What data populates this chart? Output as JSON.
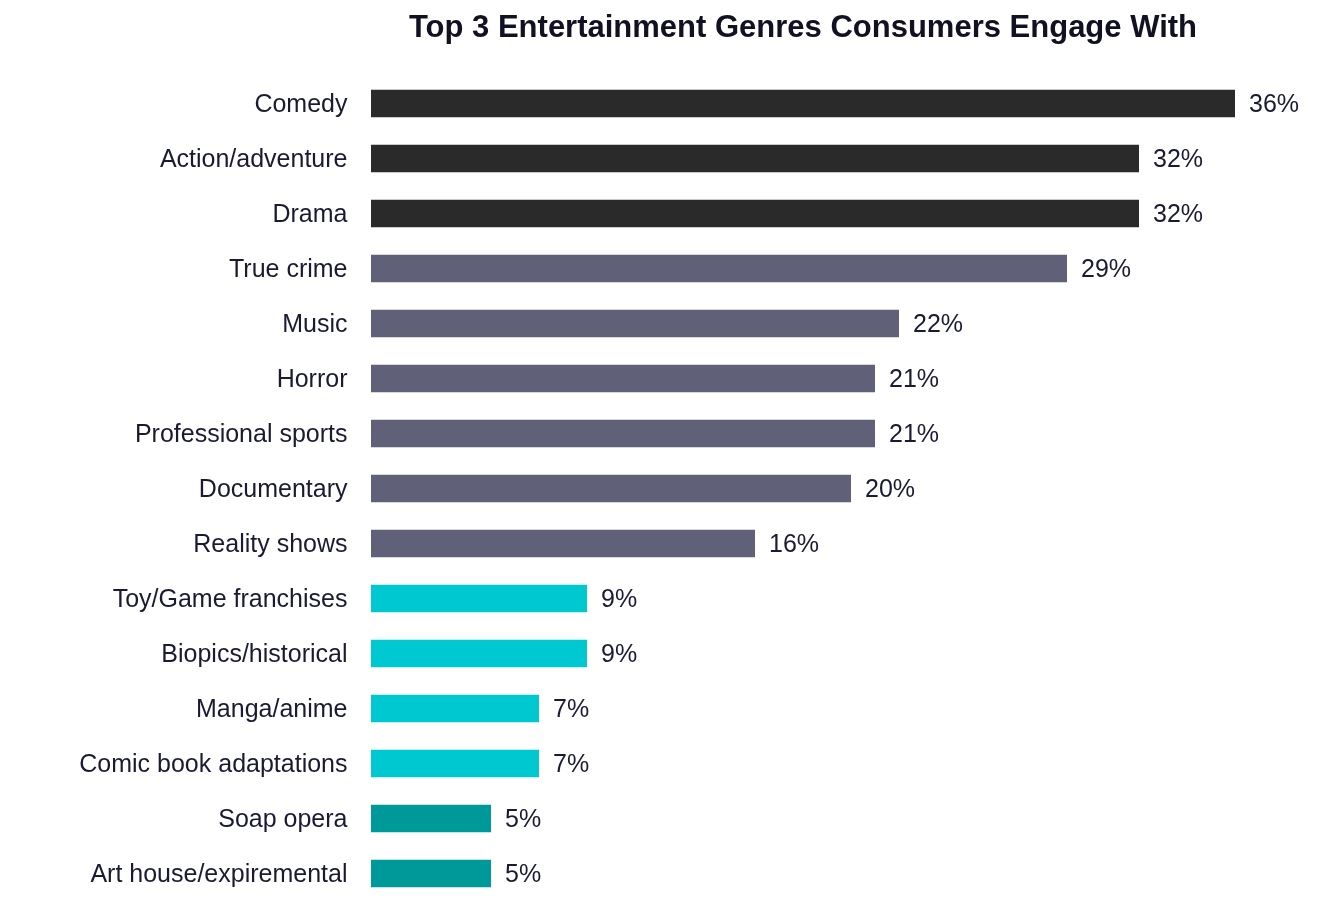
{
  "chart_data": {
    "type": "bar",
    "orientation": "horizontal",
    "title": "Top 3 Entertainment Genres Consumers Engage With",
    "categories": [
      "Comedy",
      "Action/adventure",
      "Drama",
      "True crime",
      "Music",
      "Horror",
      "Professional sports",
      "Documentary",
      "Reality shows",
      "Toy/Game franchises",
      "Biopics/historical",
      "Manga/anime",
      "Comic book adaptations",
      "Soap opera",
      "Art house/expiremental"
    ],
    "values": [
      36,
      32,
      32,
      29,
      22,
      21,
      21,
      20,
      16,
      9,
      9,
      7,
      7,
      5,
      5
    ],
    "colors": [
      "#2a2a2a",
      "#2a2a2a",
      "#2a2a2a",
      "#606078",
      "#606078",
      "#606078",
      "#606078",
      "#606078",
      "#606078",
      "#00c8d0",
      "#00c8d0",
      "#00c8d0",
      "#00c8d0",
      "#009999",
      "#009999"
    ],
    "value_labels": [
      "36%",
      "32%",
      "32%",
      "29%",
      "22%",
      "21%",
      "21%",
      "20%",
      "16%",
      "9%",
      "9%",
      "7%",
      "7%",
      "5%",
      "5%"
    ]
  }
}
